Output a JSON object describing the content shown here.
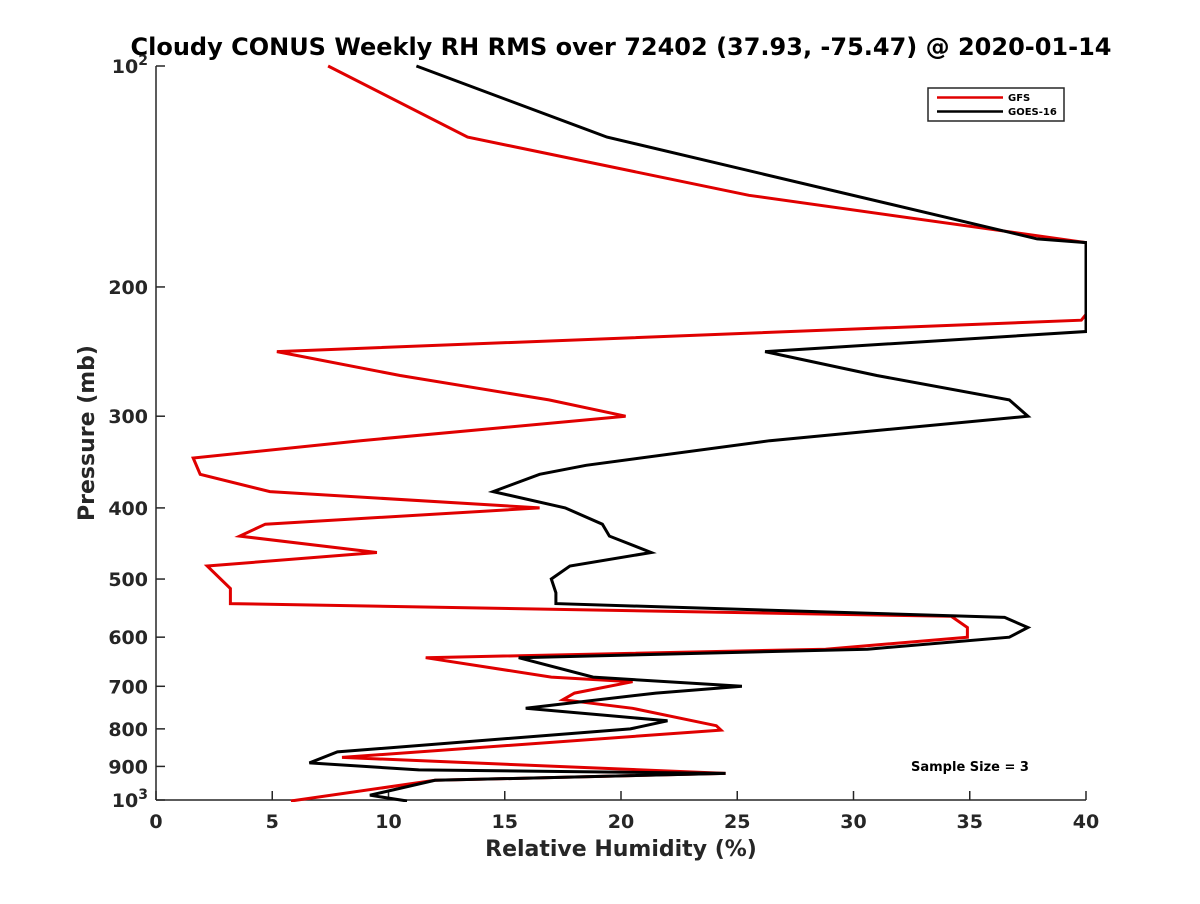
{
  "chart_data": {
    "type": "line",
    "title": "Cloudy CONUS Weekly RH RMS over 72402 (37.93, -75.47) @ 2020-01-14",
    "xlabel": "Relative Humidity (%)",
    "ylabel": "Pressure (mb)",
    "xlim": [
      0,
      40
    ],
    "ylim": [
      100,
      1000
    ],
    "yscale": "log",
    "y_reversed": true,
    "grid": false,
    "legend_position": "top-right",
    "x_ticks": [
      "0",
      "5",
      "10",
      "15",
      "20",
      "25",
      "30",
      "35",
      "40"
    ],
    "x_tick_values": [
      0,
      5,
      10,
      15,
      20,
      25,
      30,
      35,
      40
    ],
    "y_ticks": [
      {
        "value": 100,
        "base": "10",
        "exp": "2"
      },
      {
        "value": 200,
        "base": "200",
        "exp": ""
      },
      {
        "value": 300,
        "base": "300",
        "exp": ""
      },
      {
        "value": 400,
        "base": "400",
        "exp": ""
      },
      {
        "value": 500,
        "base": "500",
        "exp": ""
      },
      {
        "value": 600,
        "base": "600",
        "exp": ""
      },
      {
        "value": 700,
        "base": "700",
        "exp": ""
      },
      {
        "value": 800,
        "base": "800",
        "exp": ""
      },
      {
        "value": 900,
        "base": "900",
        "exp": ""
      },
      {
        "value": 1000,
        "base": "10",
        "exp": "3"
      }
    ],
    "annotation": "Sample Size = 3",
    "series": [
      {
        "name": "GFS",
        "color": "#e00000",
        "points": [
          [
            7.4,
            100
          ],
          [
            13.4,
            125
          ],
          [
            25.5,
            150
          ],
          [
            40.0,
            174
          ],
          [
            40.0,
            218
          ],
          [
            39.8,
            222
          ],
          [
            5.2,
            245
          ],
          [
            10.5,
            264
          ],
          [
            16.9,
            285
          ],
          [
            20.2,
            300
          ],
          [
            8.8,
            324
          ],
          [
            1.6,
            342
          ],
          [
            1.9,
            360
          ],
          [
            4.9,
            380
          ],
          [
            16.5,
            400
          ],
          [
            4.7,
            421
          ],
          [
            3.6,
            437
          ],
          [
            9.5,
            460
          ],
          [
            2.2,
            480
          ],
          [
            3.2,
            515
          ],
          [
            3.2,
            540
          ],
          [
            34.2,
            562
          ],
          [
            34.9,
            582
          ],
          [
            34.9,
            600
          ],
          [
            28.8,
            623
          ],
          [
            11.6,
            640
          ],
          [
            17.0,
            680
          ],
          [
            20.5,
            690
          ],
          [
            18.0,
            715
          ],
          [
            17.5,
            730
          ],
          [
            20.5,
            750
          ],
          [
            24.1,
            792
          ],
          [
            24.3,
            803
          ],
          [
            8.0,
            875
          ],
          [
            24.5,
            920
          ],
          [
            12.0,
            940
          ],
          [
            5.8,
            1003
          ]
        ]
      },
      {
        "name": "GOES-16",
        "color": "#000000",
        "points": [
          [
            11.2,
            100
          ],
          [
            19.4,
            125
          ],
          [
            37.9,
            172
          ],
          [
            40.0,
            174
          ],
          [
            40.0,
            230
          ],
          [
            26.2,
            245
          ],
          [
            31.0,
            264
          ],
          [
            36.7,
            285
          ],
          [
            37.5,
            300
          ],
          [
            26.4,
            324
          ],
          [
            18.5,
            350
          ],
          [
            16.5,
            360
          ],
          [
            14.5,
            380
          ],
          [
            17.6,
            400
          ],
          [
            19.2,
            421
          ],
          [
            19.5,
            437
          ],
          [
            21.3,
            460
          ],
          [
            17.8,
            480
          ],
          [
            17.0,
            500
          ],
          [
            17.2,
            522
          ],
          [
            17.2,
            540
          ],
          [
            36.5,
            564
          ],
          [
            37.5,
            582
          ],
          [
            36.7,
            600
          ],
          [
            30.6,
            623
          ],
          [
            15.6,
            640
          ],
          [
            18.8,
            680
          ],
          [
            25.2,
            700
          ],
          [
            21.5,
            715
          ],
          [
            15.9,
            750
          ],
          [
            22.0,
            780
          ],
          [
            20.4,
            800
          ],
          [
            7.8,
            860
          ],
          [
            6.6,
            890
          ],
          [
            11.3,
            910
          ],
          [
            24.5,
            920
          ],
          [
            12.0,
            940
          ],
          [
            9.2,
            985
          ],
          [
            10.8,
            1003
          ]
        ]
      }
    ]
  }
}
